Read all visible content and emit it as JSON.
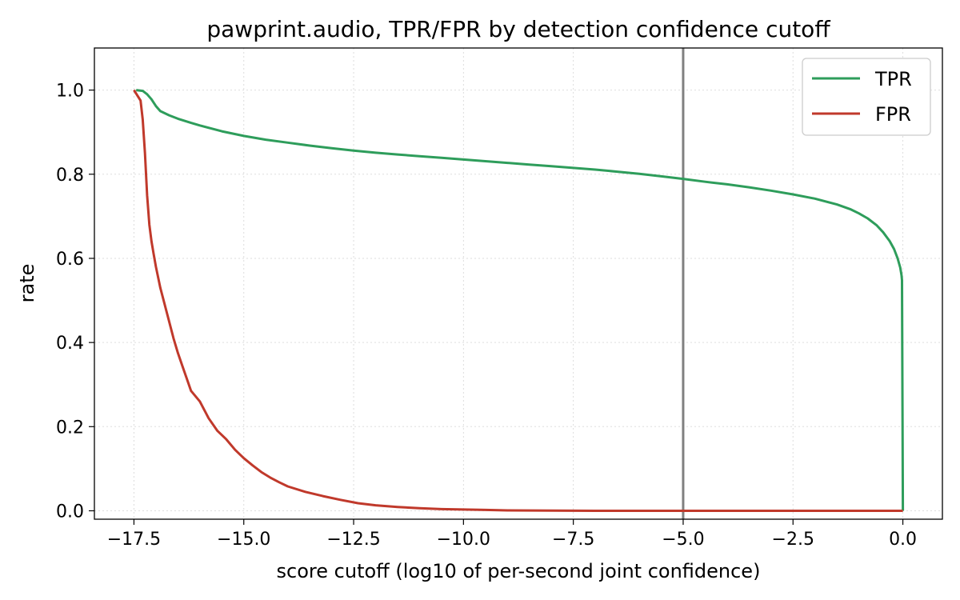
{
  "chart_data": {
    "type": "line",
    "title": "pawprint.audio, TPR/FPR by detection confidence cutoff",
    "xlabel": "score cutoff  (log10 of per-second joint confidence)",
    "ylabel": "rate",
    "xlim": [
      -18.4,
      0.9
    ],
    "ylim": [
      -0.02,
      1.1
    ],
    "xticks": [
      -17.5,
      -15.0,
      -12.5,
      -10.0,
      -7.5,
      -5.0,
      -2.5,
      0.0
    ],
    "xtick_labels": [
      "−17.5",
      "−15.0",
      "−12.5",
      "−10.0",
      "−7.5",
      "−5.0",
      "−2.5",
      "0.0"
    ],
    "yticks": [
      0.0,
      0.2,
      0.4,
      0.6,
      0.8,
      1.0
    ],
    "ytick_labels": [
      "0.0",
      "0.2",
      "0.4",
      "0.6",
      "0.8",
      "1.0"
    ],
    "grid": true,
    "legend_position": "top-right",
    "vline": {
      "x": -5.0,
      "color": "#808080"
    },
    "series": [
      {
        "name": "TPR",
        "color": "#2e9d5b",
        "points": [
          [
            -17.45,
            1.0
          ],
          [
            -17.3,
            0.998
          ],
          [
            -17.2,
            0.99
          ],
          [
            -17.1,
            0.978
          ],
          [
            -17.0,
            0.962
          ],
          [
            -16.9,
            0.95
          ],
          [
            -16.7,
            0.94
          ],
          [
            -16.5,
            0.932
          ],
          [
            -16.2,
            0.922
          ],
          [
            -16.0,
            0.916
          ],
          [
            -15.5,
            0.902
          ],
          [
            -15.0,
            0.891
          ],
          [
            -14.5,
            0.882
          ],
          [
            -14.0,
            0.875
          ],
          [
            -13.5,
            0.868
          ],
          [
            -13.0,
            0.862
          ],
          [
            -12.5,
            0.856
          ],
          [
            -12.0,
            0.851
          ],
          [
            -11.5,
            0.847
          ],
          [
            -11.0,
            0.843
          ],
          [
            -10.5,
            0.839
          ],
          [
            -10.0,
            0.835
          ],
          [
            -9.5,
            0.831
          ],
          [
            -9.0,
            0.827
          ],
          [
            -8.5,
            0.823
          ],
          [
            -8.0,
            0.819
          ],
          [
            -7.5,
            0.815
          ],
          [
            -7.0,
            0.811
          ],
          [
            -6.5,
            0.806
          ],
          [
            -6.0,
            0.801
          ],
          [
            -5.5,
            0.795
          ],
          [
            -5.0,
            0.789
          ],
          [
            -4.5,
            0.782
          ],
          [
            -4.0,
            0.776
          ],
          [
            -3.5,
            0.769
          ],
          [
            -3.0,
            0.761
          ],
          [
            -2.5,
            0.752
          ],
          [
            -2.0,
            0.742
          ],
          [
            -1.5,
            0.728
          ],
          [
            -1.2,
            0.717
          ],
          [
            -1.0,
            0.707
          ],
          [
            -0.8,
            0.695
          ],
          [
            -0.6,
            0.679
          ],
          [
            -0.45,
            0.662
          ],
          [
            -0.3,
            0.641
          ],
          [
            -0.2,
            0.622
          ],
          [
            -0.12,
            0.6
          ],
          [
            -0.06,
            0.578
          ],
          [
            -0.03,
            0.56
          ],
          [
            -0.02,
            0.548
          ],
          [
            0.0,
            0.0
          ]
        ]
      },
      {
        "name": "FPR",
        "color": "#c0392b",
        "points": [
          [
            -17.5,
            1.0
          ],
          [
            -17.35,
            0.975
          ],
          [
            -17.3,
            0.93
          ],
          [
            -17.25,
            0.85
          ],
          [
            -17.2,
            0.75
          ],
          [
            -17.15,
            0.68
          ],
          [
            -17.1,
            0.64
          ],
          [
            -17.05,
            0.61
          ],
          [
            -17.0,
            0.58
          ],
          [
            -16.9,
            0.53
          ],
          [
            -16.8,
            0.49
          ],
          [
            -16.7,
            0.45
          ],
          [
            -16.6,
            0.41
          ],
          [
            -16.5,
            0.375
          ],
          [
            -16.4,
            0.345
          ],
          [
            -16.3,
            0.315
          ],
          [
            -16.2,
            0.285
          ],
          [
            -16.0,
            0.26
          ],
          [
            -15.8,
            0.22
          ],
          [
            -15.6,
            0.19
          ],
          [
            -15.4,
            0.17
          ],
          [
            -15.2,
            0.145
          ],
          [
            -15.0,
            0.125
          ],
          [
            -14.8,
            0.108
          ],
          [
            -14.6,
            0.092
          ],
          [
            -14.4,
            0.079
          ],
          [
            -14.2,
            0.068
          ],
          [
            -14.0,
            0.058
          ],
          [
            -13.6,
            0.045
          ],
          [
            -13.2,
            0.035
          ],
          [
            -12.8,
            0.026
          ],
          [
            -12.4,
            0.018
          ],
          [
            -12.0,
            0.013
          ],
          [
            -11.5,
            0.009
          ],
          [
            -11.0,
            0.006
          ],
          [
            -10.5,
            0.004
          ],
          [
            -10.0,
            0.003
          ],
          [
            -9.5,
            0.002
          ],
          [
            -9.0,
            0.001
          ],
          [
            -8.0,
            0.0005
          ],
          [
            -7.0,
            0.0
          ],
          [
            -5.0,
            0.0
          ],
          [
            -2.5,
            0.0
          ],
          [
            0.0,
            0.0
          ]
        ]
      }
    ]
  }
}
